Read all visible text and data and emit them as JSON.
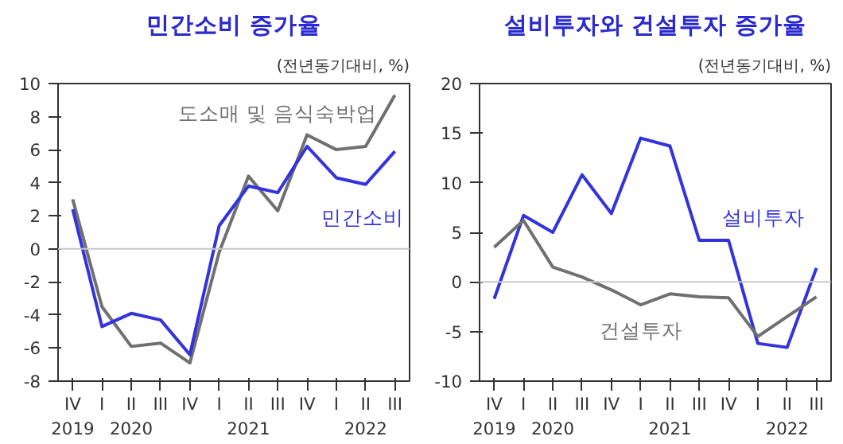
{
  "chart_data": [
    {
      "type": "line",
      "title": "민간소비 증가율",
      "annotations": [
        "(전년동기대비, %)"
      ],
      "categories": [
        "IV\n2019",
        "I",
        "II\n2020",
        "III",
        "IV",
        "I",
        "II\n2021",
        "III",
        "IV",
        "I",
        "II\n2022",
        "III"
      ],
      "series": [
        {
          "name": "도소매 및 음식숙박업",
          "color": "#707070",
          "values": [
            3.0,
            -3.5,
            -5.9,
            -5.7,
            -6.9,
            -0.2,
            4.4,
            2.3,
            6.9,
            6.0,
            6.2,
            9.3
          ]
        },
        {
          "name": "민간소비",
          "color": "#3333dd",
          "values": [
            2.4,
            -4.7,
            -3.9,
            -4.3,
            -6.4,
            1.4,
            3.8,
            3.4,
            6.2,
            4.3,
            3.9,
            5.9
          ]
        }
      ],
      "ylim": [
        -8,
        10
      ],
      "yticks": [
        -8,
        -6,
        -4,
        -2,
        0,
        2,
        4,
        6,
        8,
        10
      ],
      "ref_lines": [
        {
          "axis": "y",
          "value": 0,
          "color": "#c8c8c8"
        }
      ],
      "grid": false,
      "marker": "none",
      "line_style": "solid"
    },
    {
      "type": "line",
      "title": "설비투자와 건설투자 증가율",
      "annotations": [
        "(전년동기대비, %)"
      ],
      "categories": [
        "IV\n2019",
        "I",
        "II\n2020",
        "III",
        "IV",
        "I",
        "II\n2021",
        "III",
        "IV",
        "I",
        "II\n2022",
        "III"
      ],
      "series": [
        {
          "name": "설비투자",
          "color": "#3333dd",
          "values": [
            -1.7,
            6.7,
            5.0,
            10.8,
            6.9,
            14.5,
            13.7,
            4.2,
            4.2,
            -6.2,
            -6.6,
            1.4
          ]
        },
        {
          "name": "건설투자",
          "color": "#707070",
          "values": [
            3.5,
            6.2,
            1.5,
            0.5,
            -0.8,
            -2.3,
            -1.2,
            -1.5,
            -1.6,
            -5.5,
            -3.5,
            -1.5
          ]
        }
      ],
      "ylim": [
        -10,
        20
      ],
      "yticks": [
        -10,
        -5,
        0,
        5,
        10,
        15,
        20
      ],
      "ref_lines": [
        {
          "axis": "y",
          "value": 0,
          "color": "#c8c8c8"
        }
      ],
      "grid": false,
      "marker": "none",
      "line_style": "solid"
    }
  ]
}
